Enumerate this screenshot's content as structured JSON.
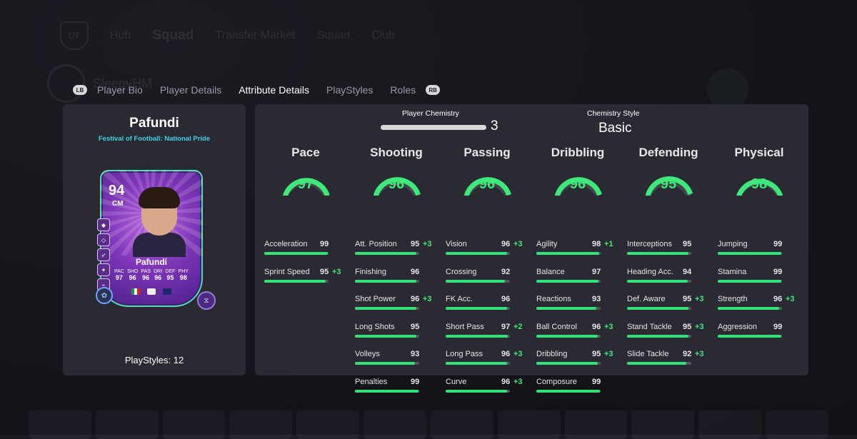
{
  "background": {
    "app_logo": "UT",
    "header_items": [
      "Hub",
      "Squad",
      "Transfer Market",
      "Squad",
      "Club"
    ],
    "username": "SleepyHM"
  },
  "tabs": {
    "left_hint": "LB",
    "right_hint": "RB",
    "items": [
      {
        "label": "Player Bio",
        "active": false
      },
      {
        "label": "Player Details",
        "active": false
      },
      {
        "label": "Attribute Details",
        "active": true
      },
      {
        "label": "PlayStyles",
        "active": false
      },
      {
        "label": "Roles",
        "active": false
      }
    ]
  },
  "player": {
    "name": "Pafundi",
    "subtitle": "Festival of Football: National Pride",
    "playstyles_label": "PlayStyles: 12",
    "card": {
      "rating": "94",
      "position": "CM",
      "name": "Pafundi",
      "stats": [
        {
          "label": "PAC",
          "value": "97"
        },
        {
          "label": "SHO",
          "value": "96"
        },
        {
          "label": "PAS",
          "value": "96"
        },
        {
          "label": "DRI",
          "value": "96"
        },
        {
          "label": "DEF",
          "value": "95"
        },
        {
          "label": "PHY",
          "value": "98"
        }
      ]
    }
  },
  "chemistry": {
    "player_label": "Player Chemistry",
    "player_value": "3",
    "style_label": "Chemistry Style",
    "style_value": "Basic"
  },
  "colors": {
    "accent_green": "#3ee87a",
    "subtitle_cyan": "#3fd3e8",
    "panel": "#2a2a33"
  },
  "categories": [
    {
      "name": "Pace",
      "value": "97",
      "attributes": [
        {
          "name": "Acceleration",
          "value": "99",
          "boost": ""
        },
        {
          "name": "Sprint Speed",
          "value": "95",
          "boost": "+3"
        }
      ]
    },
    {
      "name": "Shooting",
      "value": "96",
      "attributes": [
        {
          "name": "Att. Position",
          "value": "95",
          "boost": "+3"
        },
        {
          "name": "Finishing",
          "value": "96",
          "boost": ""
        },
        {
          "name": "Shot Power",
          "value": "96",
          "boost": "+3"
        },
        {
          "name": "Long Shots",
          "value": "95",
          "boost": ""
        },
        {
          "name": "Volleys",
          "value": "93",
          "boost": ""
        },
        {
          "name": "Penalties",
          "value": "99",
          "boost": ""
        }
      ]
    },
    {
      "name": "Passing",
      "value": "96",
      "attributes": [
        {
          "name": "Vision",
          "value": "96",
          "boost": "+3"
        },
        {
          "name": "Crossing",
          "value": "92",
          "boost": ""
        },
        {
          "name": "FK Acc.",
          "value": "96",
          "boost": ""
        },
        {
          "name": "Short Pass",
          "value": "97",
          "boost": "+2"
        },
        {
          "name": "Long Pass",
          "value": "96",
          "boost": "+3"
        },
        {
          "name": "Curve",
          "value": "96",
          "boost": "+3"
        }
      ]
    },
    {
      "name": "Dribbling",
      "value": "96",
      "attributes": [
        {
          "name": "Agility",
          "value": "98",
          "boost": "+1"
        },
        {
          "name": "Balance",
          "value": "97",
          "boost": ""
        },
        {
          "name": "Reactions",
          "value": "93",
          "boost": ""
        },
        {
          "name": "Ball Control",
          "value": "96",
          "boost": "+3"
        },
        {
          "name": "Dribbling",
          "value": "95",
          "boost": "+3"
        },
        {
          "name": "Composure",
          "value": "99",
          "boost": ""
        }
      ]
    },
    {
      "name": "Defending",
      "value": "95",
      "attributes": [
        {
          "name": "Interceptions",
          "value": "95",
          "boost": ""
        },
        {
          "name": "Heading Acc.",
          "value": "94",
          "boost": ""
        },
        {
          "name": "Def. Aware",
          "value": "95",
          "boost": "+3"
        },
        {
          "name": "Stand Tackle",
          "value": "95",
          "boost": "+3"
        },
        {
          "name": "Slide Tackle",
          "value": "92",
          "boost": "+3"
        }
      ]
    },
    {
      "name": "Physical",
      "value": "98",
      "attributes": [
        {
          "name": "Jumping",
          "value": "99",
          "boost": ""
        },
        {
          "name": "Stamina",
          "value": "99",
          "boost": ""
        },
        {
          "name": "Strength",
          "value": "96",
          "boost": "+3"
        },
        {
          "name": "Aggression",
          "value": "99",
          "boost": ""
        }
      ]
    }
  ]
}
